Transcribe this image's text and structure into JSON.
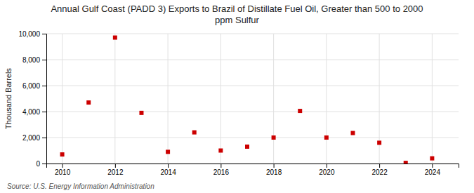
{
  "chart_data": {
    "type": "scatter",
    "title": "Annual Gulf Coast (PADD 3) Exports to Brazil of Distillate Fuel Oil, Greater than 500 to 2000\nppm Sulfur",
    "ylabel": "Thousand Barrels",
    "source": "Source: U.S. Energy Information Administration",
    "x": [
      2010,
      2011,
      2012,
      2013,
      2014,
      2015,
      2016,
      2017,
      2018,
      2019,
      2020,
      2021,
      2022,
      2023,
      2024
    ],
    "values": [
      700,
      4700,
      9700,
      3900,
      900,
      2400,
      1000,
      1300,
      2000,
      4050,
      2000,
      2350,
      1600,
      50,
      400
    ],
    "color": "#cc0000",
    "marker": "square",
    "xlim": [
      2009.4,
      2025.0
    ],
    "xticks": [
      2010,
      2012,
      2014,
      2016,
      2018,
      2020,
      2022,
      2024
    ],
    "ylim": [
      0,
      10000
    ],
    "yticks": [
      0,
      {
        "value": 2000,
        "label": "2,000"
      },
      {
        "value": 4000,
        "label": "4,000"
      },
      {
        "value": 6000,
        "label": "6,000"
      },
      {
        "value": 8000,
        "label": "8,000"
      },
      {
        "value": 10000,
        "label": "10,000"
      }
    ],
    "grid": true
  }
}
